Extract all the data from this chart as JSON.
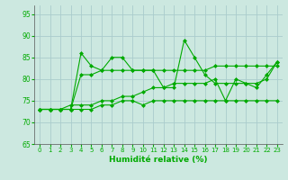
{
  "xlabel": "Humidité relative (%)",
  "background_color": "#cce8e0",
  "grid_color": "#aacccc",
  "line_color": "#00aa00",
  "xlim": [
    -0.5,
    23.5
  ],
  "ylim": [
    65,
    97
  ],
  "yticks": [
    65,
    70,
    75,
    80,
    85,
    90,
    95
  ],
  "xticks": [
    0,
    1,
    2,
    3,
    4,
    5,
    6,
    7,
    8,
    9,
    10,
    11,
    12,
    13,
    14,
    15,
    16,
    17,
    18,
    19,
    20,
    21,
    22,
    23
  ],
  "series": [
    {
      "x": [
        0,
        1,
        2,
        3,
        4,
        5,
        6,
        7,
        8,
        9,
        10,
        11,
        12,
        13,
        14,
        15,
        16,
        17,
        18,
        19,
        20,
        21,
        22,
        23
      ],
      "y": [
        73,
        73,
        73,
        73,
        86,
        83,
        82,
        85,
        85,
        82,
        82,
        82,
        78,
        78,
        89,
        85,
        81,
        79,
        79,
        79,
        79,
        78,
        81,
        84
      ]
    },
    {
      "x": [
        0,
        1,
        2,
        3,
        4,
        5,
        6,
        7,
        8,
        9,
        10,
        11,
        12,
        13,
        14,
        15,
        16,
        17,
        18,
        19,
        20,
        21,
        22,
        23
      ],
      "y": [
        73,
        73,
        73,
        73,
        81,
        81,
        82,
        82,
        82,
        82,
        82,
        82,
        82,
        82,
        82,
        82,
        82,
        83,
        83,
        83,
        83,
        83,
        83,
        83
      ]
    },
    {
      "x": [
        0,
        1,
        2,
        3,
        4,
        5,
        6,
        7,
        8,
        9,
        10,
        11,
        12,
        13,
        14,
        15,
        16,
        17,
        18,
        19,
        20,
        21,
        22,
        23
      ],
      "y": [
        73,
        73,
        73,
        74,
        74,
        74,
        75,
        75,
        76,
        76,
        77,
        78,
        78,
        79,
        79,
        79,
        79,
        80,
        75,
        80,
        79,
        79,
        80,
        84
      ]
    },
    {
      "x": [
        0,
        1,
        2,
        3,
        4,
        5,
        6,
        7,
        8,
        9,
        10,
        11,
        12,
        13,
        14,
        15,
        16,
        17,
        18,
        19,
        20,
        21,
        22,
        23
      ],
      "y": [
        73,
        73,
        73,
        73,
        73,
        73,
        74,
        74,
        75,
        75,
        74,
        75,
        75,
        75,
        75,
        75,
        75,
        75,
        75,
        75,
        75,
        75,
        75,
        75
      ]
    }
  ]
}
